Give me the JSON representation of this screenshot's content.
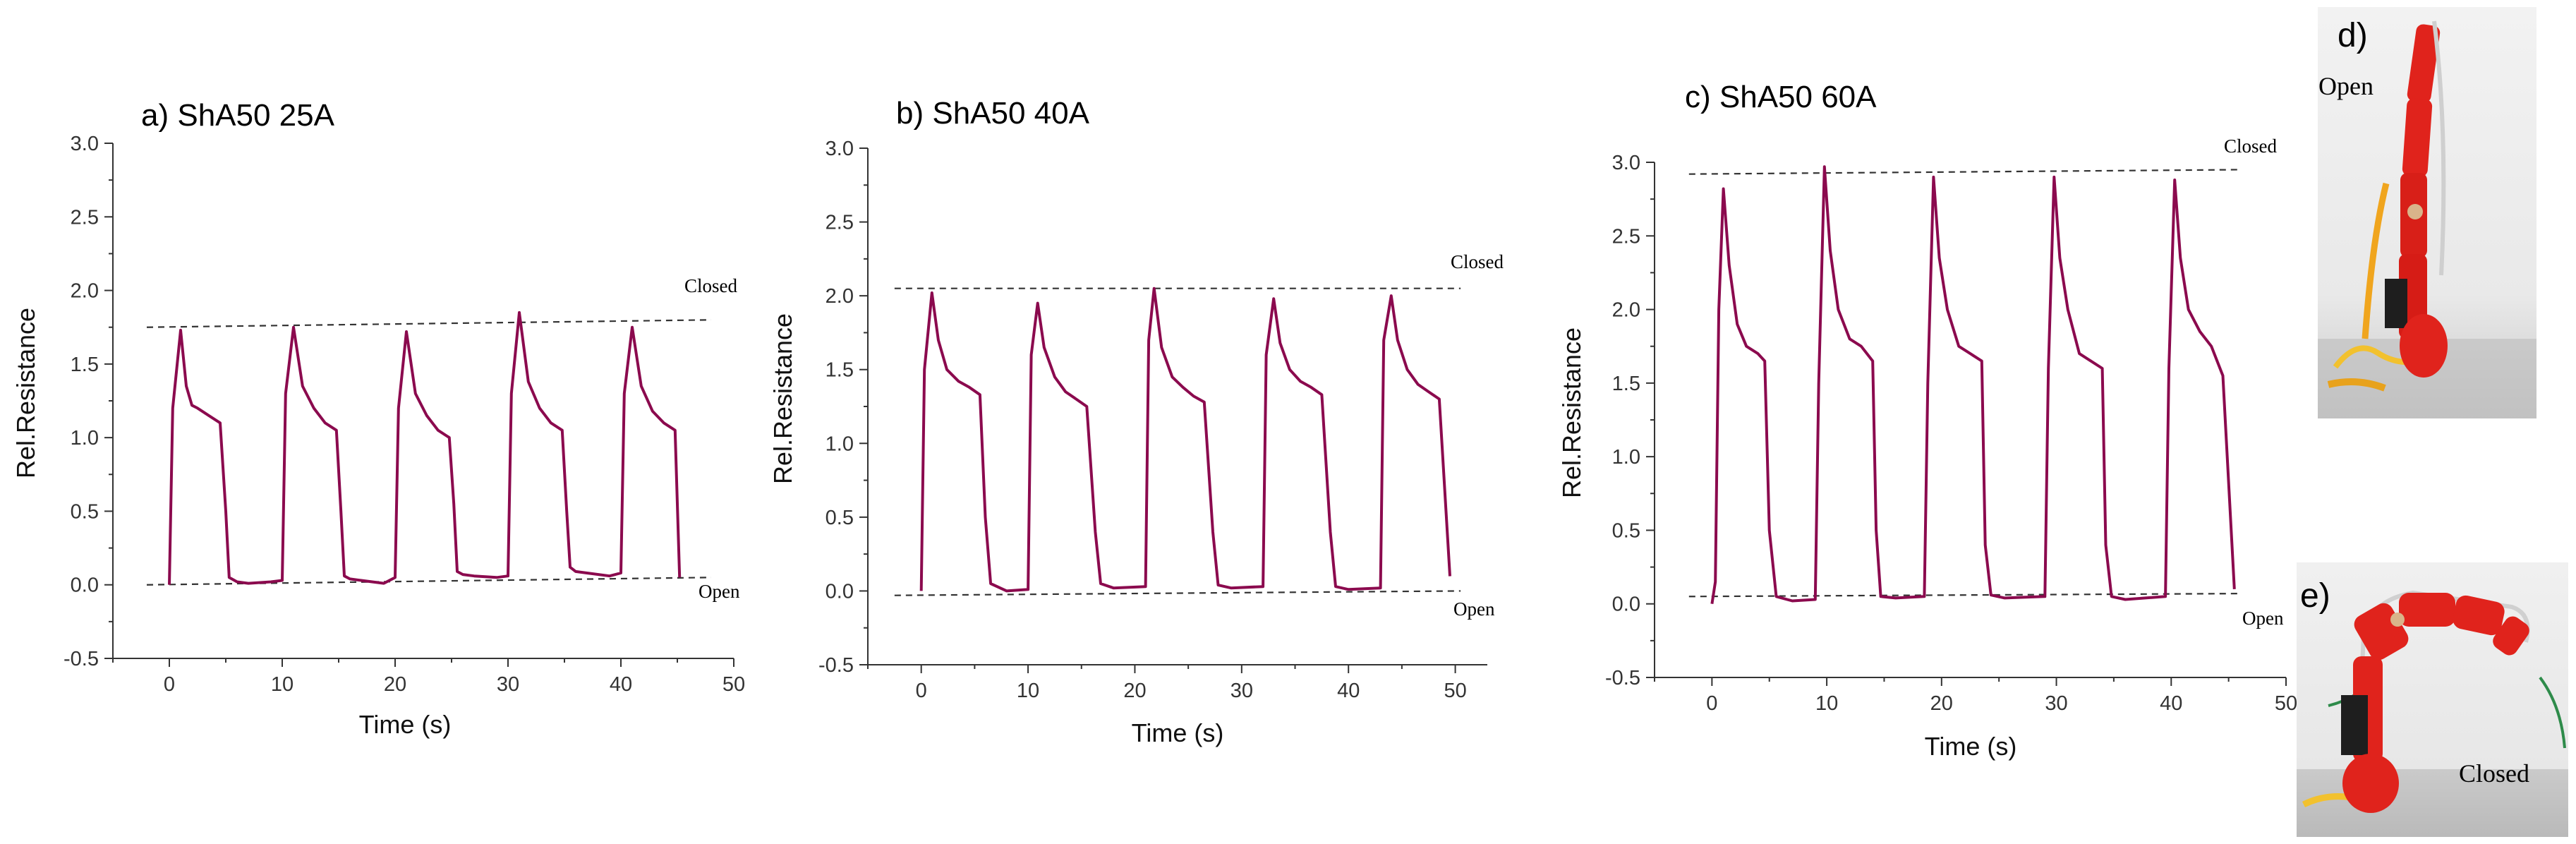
{
  "chart_data": [
    {
      "type": "line",
      "title": "a) ShA50 25A",
      "xlabel": "Time (s)",
      "ylabel": "Rel.Resistance",
      "xlim": [
        -5,
        50
      ],
      "ylim": [
        -0.5,
        3.0
      ],
      "xticks": [
        "0",
        "10",
        "20",
        "30",
        "40",
        "50"
      ],
      "yticks": [
        "-0.5",
        "0.0",
        "0.5",
        "1.0",
        "1.5",
        "2.0",
        "2.5",
        "3.0"
      ],
      "annotations": {
        "closed": "Closed",
        "open": "Open"
      },
      "reference_lines": [
        {
          "name": "Closed",
          "x": [
            -2,
            48
          ],
          "y": [
            1.75,
            1.8
          ]
        },
        {
          "name": "Open",
          "x": [
            -2,
            48
          ],
          "y": [
            0.0,
            0.05
          ]
        }
      ],
      "series": [
        {
          "name": "Rel.Resistance",
          "x": [
            0,
            0.3,
            1,
            1.5,
            2,
            2.5,
            3.5,
            4.5,
            5,
            5.3,
            6,
            7,
            9,
            10,
            10.3,
            11,
            11.8,
            12.8,
            13.8,
            14.8,
            15.2,
            15.5,
            16,
            17,
            19,
            20,
            20.3,
            21,
            21.8,
            22.8,
            23.8,
            24.8,
            25.2,
            25.5,
            26,
            27,
            29,
            30,
            30.3,
            31,
            31.8,
            32.8,
            33.8,
            34.8,
            35.2,
            35.5,
            36,
            37,
            39,
            40,
            40.3,
            41,
            41.8,
            42.8,
            43.8,
            44.8,
            45.2
          ],
          "values": [
            0.0,
            1.2,
            1.73,
            1.35,
            1.22,
            1.2,
            1.15,
            1.1,
            0.5,
            0.05,
            0.02,
            0.01,
            0.02,
            0.03,
            1.3,
            1.75,
            1.35,
            1.2,
            1.1,
            1.05,
            0.5,
            0.06,
            0.04,
            0.03,
            0.01,
            0.05,
            1.2,
            1.72,
            1.3,
            1.15,
            1.05,
            1.0,
            0.55,
            0.09,
            0.07,
            0.06,
            0.05,
            0.06,
            1.3,
            1.85,
            1.38,
            1.2,
            1.1,
            1.05,
            0.5,
            0.12,
            0.09,
            0.08,
            0.06,
            0.08,
            1.3,
            1.75,
            1.35,
            1.18,
            1.1,
            1.05,
            0.05
          ]
        }
      ]
    },
    {
      "type": "line",
      "title": "b) ShA50 40A",
      "xlabel": "Time (s)",
      "ylabel": "Rel.Resistance",
      "xlim": [
        -5,
        53
      ],
      "ylim": [
        -0.5,
        3.0
      ],
      "xticks": [
        "0",
        "10",
        "20",
        "30",
        "40",
        "50"
      ],
      "yticks": [
        "-0.5",
        "0.0",
        "0.5",
        "1.0",
        "1.5",
        "2.0",
        "2.5",
        "3.0"
      ],
      "annotations": {
        "closed": "Closed",
        "open": "Open"
      },
      "reference_lines": [
        {
          "name": "Closed",
          "x": [
            -2.5,
            50.5
          ],
          "y": [
            2.05,
            2.05
          ]
        },
        {
          "name": "Open",
          "x": [
            -2.5,
            50.5
          ],
          "y": [
            -0.03,
            0.0
          ]
        }
      ],
      "series": [
        {
          "name": "Rel.Resistance",
          "x": [
            0,
            0.3,
            1,
            1.6,
            2.4,
            3.5,
            4.5,
            5.5,
            6,
            6.5,
            8,
            10,
            10.3,
            10.9,
            11.5,
            12.5,
            13.5,
            14.5,
            15.5,
            16.3,
            16.8,
            18,
            21,
            21.3,
            21.8,
            22.5,
            23.5,
            24.5,
            25.5,
            26.5,
            27.3,
            27.8,
            29,
            32,
            32.3,
            33,
            33.6,
            34.5,
            35.5,
            36.5,
            37.5,
            38.3,
            38.8,
            40,
            43,
            43.3,
            44,
            44.6,
            45.5,
            46.5,
            47.5,
            48.5,
            49.5
          ],
          "values": [
            0.0,
            1.5,
            2.02,
            1.7,
            1.5,
            1.42,
            1.38,
            1.33,
            0.5,
            0.05,
            0.0,
            0.01,
            1.6,
            1.95,
            1.65,
            1.45,
            1.35,
            1.3,
            1.25,
            0.4,
            0.05,
            0.02,
            0.03,
            1.7,
            2.05,
            1.65,
            1.45,
            1.38,
            1.32,
            1.28,
            0.4,
            0.04,
            0.02,
            0.03,
            1.6,
            1.98,
            1.68,
            1.5,
            1.42,
            1.38,
            1.33,
            0.4,
            0.03,
            0.01,
            0.02,
            1.7,
            2.0,
            1.7,
            1.5,
            1.4,
            1.35,
            1.3,
            0.1
          ]
        }
      ]
    },
    {
      "type": "line",
      "title": "c) ShA50 60A",
      "xlabel": "Time (s)",
      "ylabel": "Rel.Resistance",
      "xlim": [
        -5,
        50
      ],
      "ylim": [
        -0.5,
        3.0
      ],
      "xticks": [
        "0",
        "10",
        "20",
        "30",
        "40",
        "50"
      ],
      "yticks": [
        "-0.5",
        "0.0",
        "0.5",
        "1.0",
        "1.5",
        "2.0",
        "2.5",
        "3.0"
      ],
      "annotations": {
        "closed": "Closed",
        "open": "Open"
      },
      "reference_lines": [
        {
          "name": "Closed",
          "x": [
            -2,
            46
          ],
          "y": [
            2.92,
            2.95
          ]
        },
        {
          "name": "Open",
          "x": [
            -2,
            46
          ],
          "y": [
            0.05,
            0.07
          ]
        }
      ],
      "series": [
        {
          "name": "Rel.Resistance",
          "x": [
            0,
            0.3,
            0.6,
            1,
            1.5,
            2.2,
            3,
            4,
            4.6,
            5,
            5.6,
            7,
            9,
            9.3,
            9.8,
            10.3,
            11,
            12,
            13,
            14,
            14.3,
            14.7,
            16,
            18.5,
            18.8,
            19.3,
            19.8,
            20.5,
            21.5,
            22.5,
            23.5,
            23.8,
            24.3,
            25.5,
            29,
            29.3,
            29.8,
            30.3,
            31,
            32,
            33,
            34,
            34.3,
            34.8,
            36,
            39.5,
            39.8,
            40.3,
            40.8,
            41.5,
            42.5,
            43.5,
            44.5,
            45.5
          ],
          "values": [
            0.0,
            0.15,
            2.0,
            2.82,
            2.3,
            1.9,
            1.75,
            1.7,
            1.65,
            0.5,
            0.05,
            0.02,
            0.03,
            1.5,
            2.97,
            2.4,
            2.0,
            1.8,
            1.75,
            1.65,
            0.5,
            0.05,
            0.04,
            0.05,
            1.5,
            2.9,
            2.35,
            2.0,
            1.75,
            1.7,
            1.65,
            0.4,
            0.06,
            0.04,
            0.05,
            1.6,
            2.9,
            2.35,
            2.0,
            1.7,
            1.65,
            1.6,
            0.4,
            0.05,
            0.03,
            0.05,
            1.6,
            2.88,
            2.35,
            2.0,
            1.85,
            1.75,
            1.55,
            0.1
          ]
        }
      ]
    }
  ],
  "photos": [
    {
      "label": "d)",
      "state": "Open"
    },
    {
      "label": "e)",
      "state": "Closed"
    }
  ]
}
